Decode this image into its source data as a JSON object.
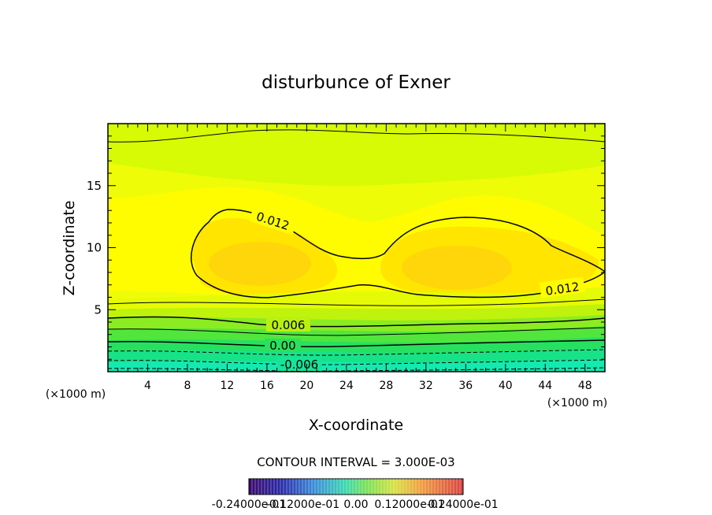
{
  "chart_data": {
    "type": "contour",
    "title": "disturbunce of Exner",
    "xlabel": "X-coordinate",
    "ylabel": "Z-coordinate",
    "x_unit": "(×1000 m)",
    "xlim": [
      0,
      50
    ],
    "ylim": [
      0,
      20
    ],
    "x_ticks": [
      4,
      8,
      12,
      16,
      20,
      24,
      28,
      32,
      36,
      40,
      44,
      48
    ],
    "y_ticks": [
      5,
      10,
      15
    ],
    "contour_interval_text": "CONTOUR INTERVAL = 3.000E-03",
    "contour_labels": [
      "0.012",
      "0.012",
      "0.006",
      "0.00",
      "-0.006"
    ],
    "colorbar": {
      "min": -0.024,
      "max": 0.024,
      "tick_labels": [
        "-0.24000e-01",
        "-0.12000e-01",
        "0.00",
        "0.12000e-01",
        "0.24000e-01"
      ]
    },
    "grid": false
  }
}
